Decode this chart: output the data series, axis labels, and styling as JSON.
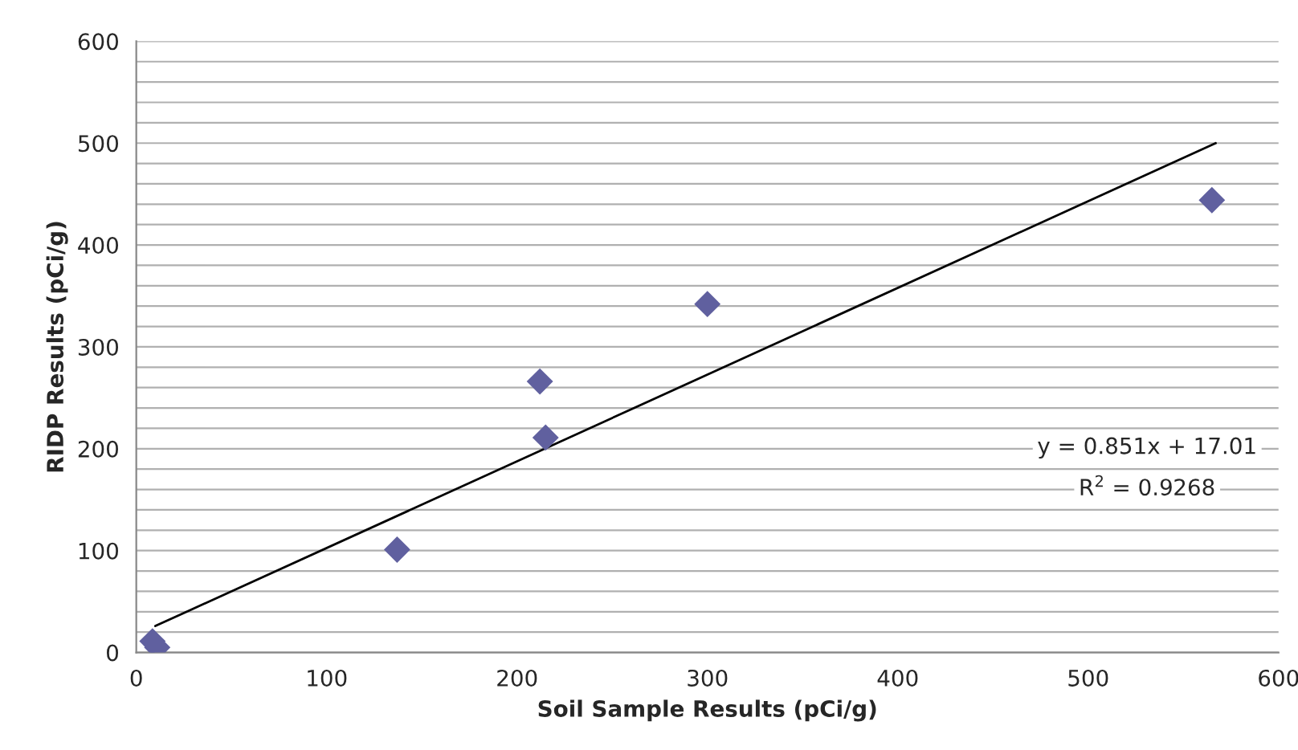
{
  "chart_data": {
    "type": "scatter",
    "xlabel": "Soil Sample Results (pCi/g)",
    "ylabel": "RIDP Results (pCi/g)",
    "xlim": [
      0,
      600
    ],
    "ylim": [
      0,
      600
    ],
    "xticks": [
      0,
      100,
      200,
      300,
      400,
      500,
      600
    ],
    "yticks": [
      0,
      {
        "value": 20,
        "label": null
      },
      {
        "value": 40,
        "label": null
      },
      {
        "value": 60,
        "label": null
      },
      {
        "value": 80,
        "label": null
      },
      100,
      {
        "value": 120,
        "label": null
      },
      {
        "value": 140,
        "label": null
      },
      {
        "value": 160,
        "label": null
      },
      {
        "value": 180,
        "label": null
      },
      200,
      {
        "value": 220,
        "label": null
      },
      {
        "value": 240,
        "label": null
      },
      {
        "value": 260,
        "label": null
      },
      {
        "value": 280,
        "label": null
      },
      300,
      {
        "value": 320,
        "label": null
      },
      {
        "value": 340,
        "label": null
      },
      {
        "value": 360,
        "label": null
      },
      {
        "value": 380,
        "label": null
      },
      400,
      {
        "value": 420,
        "label": null
      },
      {
        "value": 440,
        "label": null
      },
      {
        "value": 460,
        "label": null
      },
      {
        "value": 480,
        "label": null
      },
      500,
      {
        "value": 520,
        "label": null
      },
      {
        "value": 540,
        "label": null
      },
      {
        "value": 560,
        "label": null
      },
      {
        "value": 580,
        "label": null
      },
      600
    ],
    "grid": "y",
    "series": [
      {
        "marker": "diamond",
        "color": "#60609f",
        "x": [
          8.5,
          11,
          137,
          212,
          215,
          300,
          565
        ],
        "values": [
          11,
          5,
          101,
          266,
          211,
          342,
          444
        ]
      },
      {
        "type": "line",
        "marker": "none",
        "color": "#000000",
        "x": [
          10,
          567
        ],
        "values": [
          26,
          500
        ]
      }
    ],
    "annotations": [
      "y = 0.851x + 17.01",
      "R$^{2}$ = 0.9268"
    ]
  }
}
